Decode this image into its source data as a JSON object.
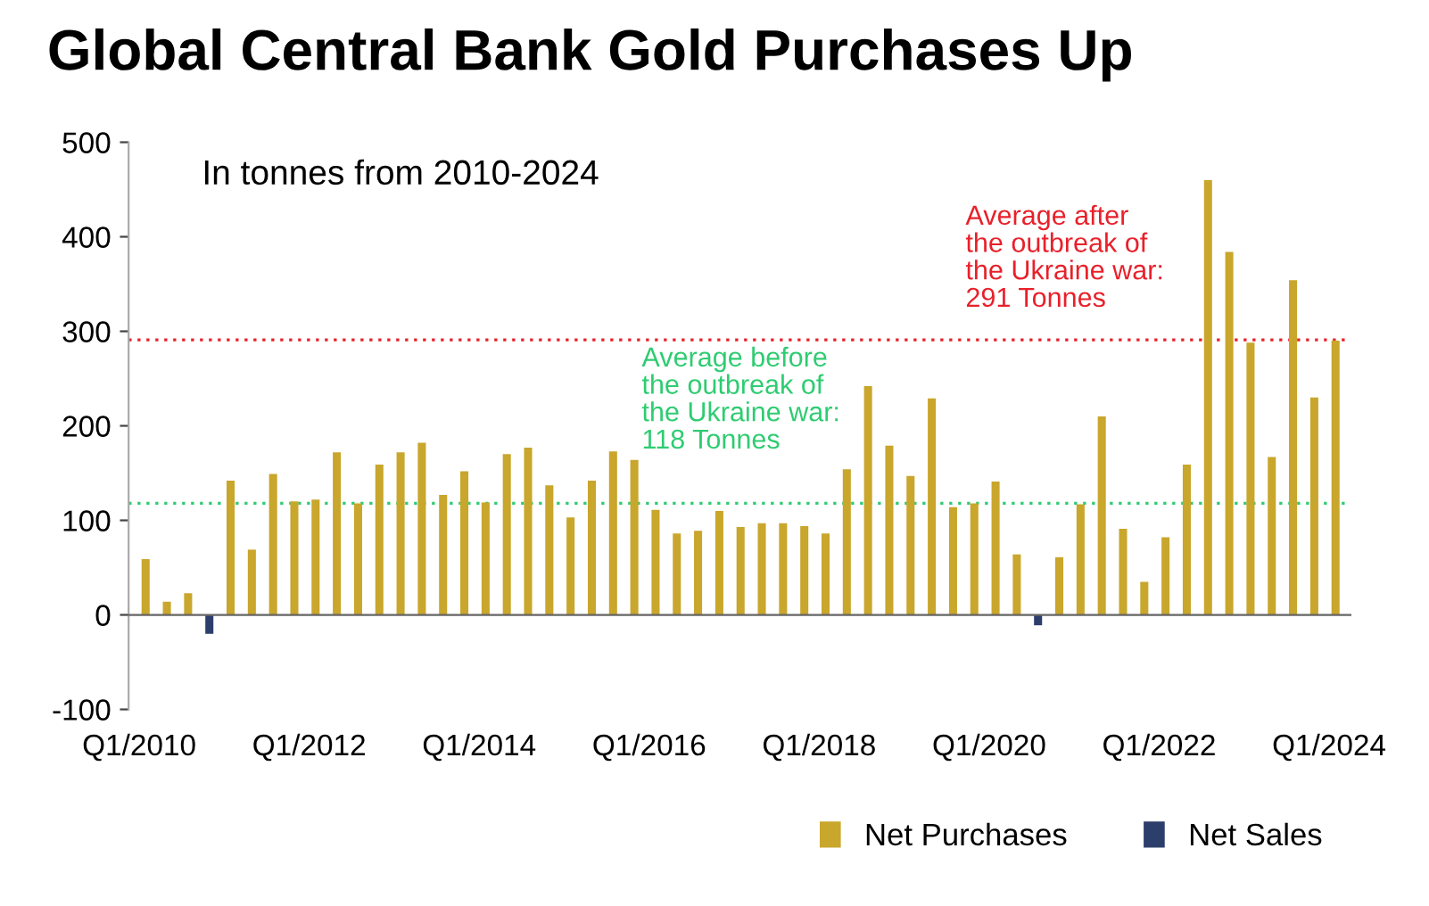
{
  "chart_data": {
    "type": "bar",
    "title": "Global Central Bank Gold Purchases Up",
    "subtitle": "In tonnes from 2010-2024",
    "categories": [
      "Q1/2010",
      null,
      null,
      null,
      null,
      null,
      null,
      null,
      "Q1/2012",
      null,
      null,
      null,
      null,
      null,
      null,
      null,
      "Q1/2014",
      null,
      null,
      null,
      null,
      null,
      null,
      null,
      "Q1/2016",
      null,
      null,
      null,
      null,
      null,
      null,
      null,
      "Q1/2018",
      null,
      null,
      null,
      null,
      null,
      null,
      null,
      "Q1/2020",
      null,
      null,
      null,
      null,
      null,
      null,
      null,
      "Q1/2022",
      null,
      null,
      null,
      null,
      null,
      null,
      null,
      "Q1/2024"
    ],
    "series": [
      {
        "name": "Net Purchases",
        "color": "#c9a62c",
        "values": [
          59,
          14,
          23,
          null,
          142,
          69,
          149,
          120,
          122,
          172,
          118,
          159,
          172,
          182,
          127,
          152,
          119,
          170,
          177,
          137,
          103,
          142,
          173,
          164,
          111,
          86,
          89,
          110,
          93,
          97,
          97,
          94,
          86,
          154,
          242,
          179,
          147,
          229,
          114,
          118,
          141,
          64,
          null,
          61,
          117,
          210,
          91,
          35,
          82,
          159,
          460,
          384,
          288,
          167,
          354,
          230,
          290
        ]
      },
      {
        "name": "Net Sales",
        "color": "#2c3e6b",
        "values": [
          null,
          null,
          null,
          -20,
          null,
          null,
          null,
          null,
          null,
          null,
          null,
          null,
          null,
          null,
          null,
          null,
          null,
          null,
          null,
          null,
          null,
          null,
          null,
          null,
          null,
          null,
          null,
          null,
          null,
          null,
          null,
          null,
          null,
          null,
          null,
          null,
          null,
          null,
          null,
          null,
          null,
          null,
          -11,
          null,
          null,
          null,
          null,
          null,
          null,
          null,
          null,
          null,
          null,
          null,
          null,
          null,
          null
        ]
      }
    ],
    "ylim": [
      -100,
      500
    ],
    "yticks": [
      -100,
      0,
      100,
      200,
      300,
      400,
      500
    ],
    "ref_lines": [
      {
        "axis": "y",
        "value": 118,
        "label": "Average before\nthe outbreak of\nthe Ukraine war:\n118 Tonnes",
        "color": "#2ecc71",
        "line_style": "dotted"
      },
      {
        "axis": "y",
        "value": 291,
        "label": "Average after\nthe outbreak of\nthe Ukraine war:\n291 Tonnes",
        "color": "#e8202a",
        "line_style": "dotted"
      }
    ],
    "legend": "bottom right"
  }
}
